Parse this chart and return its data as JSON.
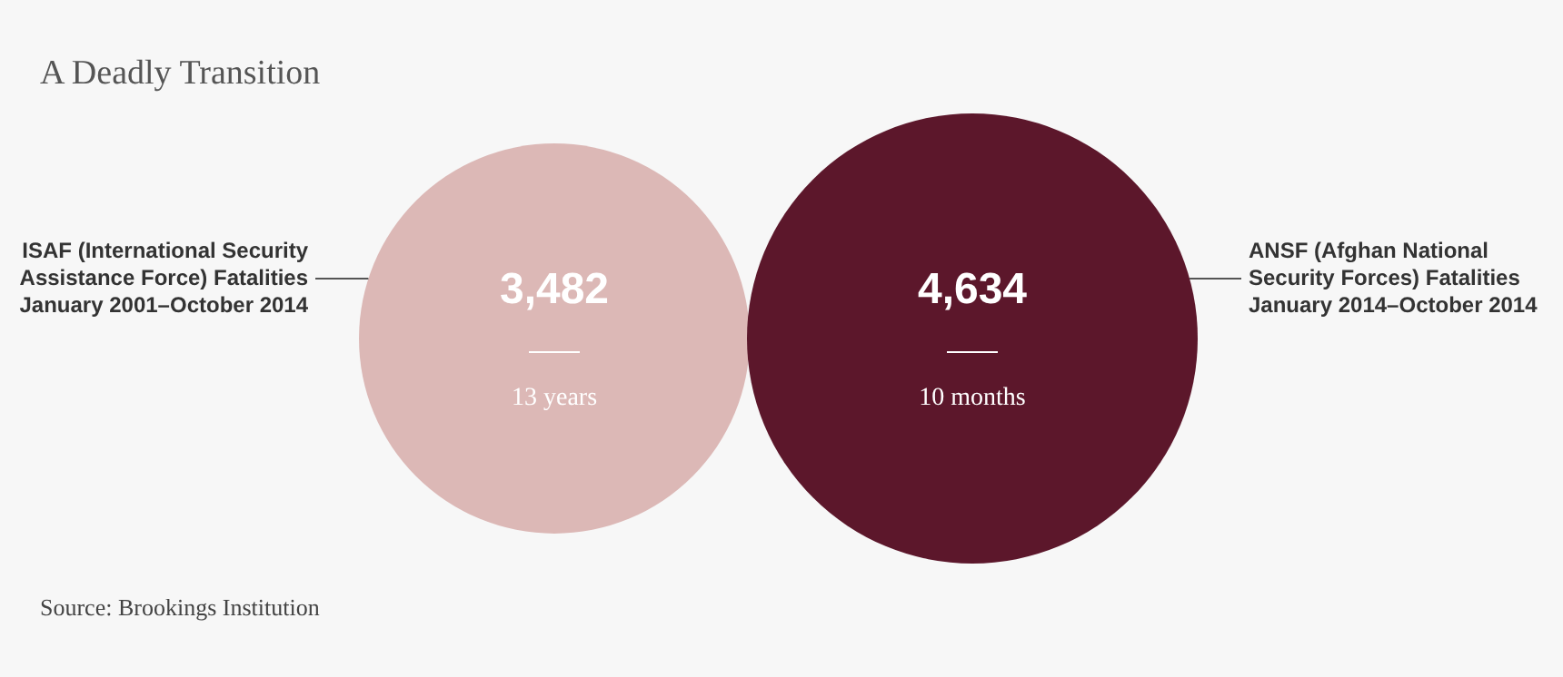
{
  "chart_data": {
    "type": "other",
    "title": "A Deadly Transition",
    "categories": [
      "ISAF (International Security Assistance Force) Fatalities January 2001–October 2014",
      "ANSF (Afghan National Security Forces) Fatalities January 2014–October 2014"
    ],
    "values": [
      3482,
      4634
    ],
    "value_labels": [
      "3,482",
      "4,634"
    ],
    "colors": [
      "#dcb8b6",
      "#5c172b"
    ],
    "annotations": [
      "Source: Brookings Institution",
      {
        "text": "13 years",
        "x": "ISAF (International Security Assistance Force) Fatalities January 2001–October 2014"
      },
      {
        "text": "10 months",
        "x": "ANSF (Afghan National Security Forces) Fatalities January 2014–October 2014"
      }
    ]
  }
}
